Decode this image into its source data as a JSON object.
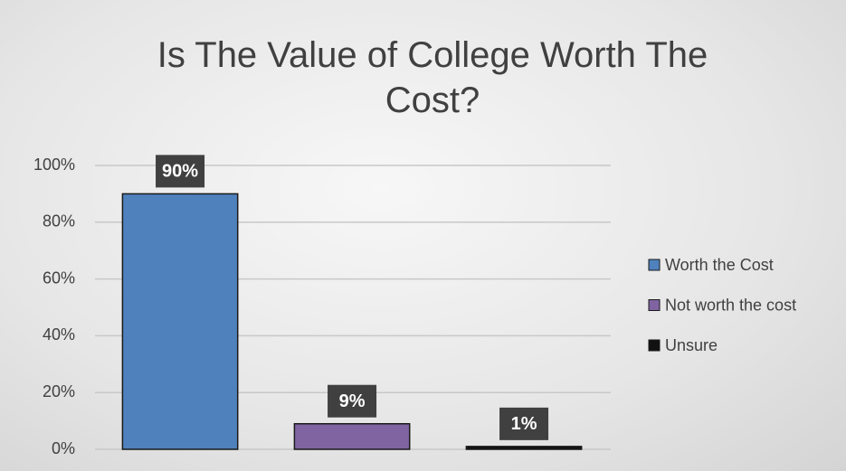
{
  "chart_data": {
    "type": "bar",
    "title": "Is The Value of College Worth The Cost?",
    "categories": [
      null
    ],
    "series": [
      {
        "name": "Worth the Cost",
        "color": "#4f81bd",
        "values": [
          90
        ],
        "value_labels": [
          "90%"
        ]
      },
      {
        "name": "Not worth the cost",
        "color": "#8064a2",
        "values": [
          9
        ],
        "value_labels": [
          "9%"
        ]
      },
      {
        "name": "Unsure",
        "color": "#111111",
        "values": [
          1
        ],
        "value_labels": [
          "1%"
        ]
      }
    ],
    "ylim": [
      0,
      100
    ],
    "yticks": [
      {
        "value": 0,
        "label": "0%"
      },
      {
        "value": 20,
        "label": "20%"
      },
      {
        "value": 40,
        "label": "40%"
      },
      {
        "value": 60,
        "label": "60%"
      },
      {
        "value": 80,
        "label": "80%"
      },
      {
        "value": 100,
        "label": "100%"
      }
    ],
    "grid": true,
    "legend": "right"
  }
}
